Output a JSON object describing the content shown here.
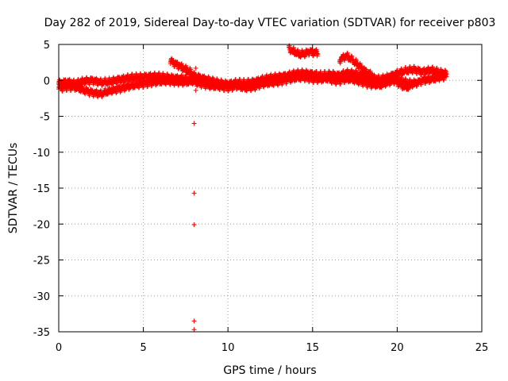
{
  "chart_data": {
    "type": "scatter",
    "title": "Day 282 of 2019, Sidereal Day-to-day VTEC variation (SDTVAR) for receiver p803",
    "xlabel": "GPS time / hours",
    "ylabel": "SDTVAR / TECUs",
    "xlim": [
      0,
      25
    ],
    "ylim": [
      -35,
      5
    ],
    "xticks": [
      0,
      5,
      10,
      15,
      20,
      25
    ],
    "yticks": [
      5,
      0,
      -5,
      -10,
      -15,
      -20,
      -25,
      -30,
      -35
    ],
    "grid": true,
    "marker": "+",
    "color": "#ff0000",
    "series": [
      {
        "name": "p803",
        "bands": [
          {
            "x": [
              0.0,
              0.5,
              1.0,
              1.5,
              2.0,
              2.5,
              3.0,
              3.5,
              4.0,
              4.5,
              5.0,
              5.5,
              6.0,
              6.5,
              7.0,
              7.5,
              8.0
            ],
            "y": [
              -0.5,
              -0.3,
              -0.6,
              -0.2,
              -0.1,
              -0.4,
              -0.3,
              0.0,
              0.2,
              0.3,
              0.4,
              0.5,
              0.4,
              0.3,
              0.2,
              0.1,
              0.0
            ]
          },
          {
            "x": [
              0.0,
              0.5,
              1.0,
              1.5,
              2.0,
              2.5,
              3.0,
              3.5,
              4.0,
              4.5,
              5.0,
              5.5,
              6.0,
              6.5,
              7.0,
              7.5,
              8.0
            ],
            "y": [
              -1.2,
              -1.0,
              -1.1,
              -1.5,
              -1.8,
              -2.0,
              -1.6,
              -1.3,
              -1.0,
              -0.8,
              -0.6,
              -0.4,
              -0.3,
              -0.2,
              -0.3,
              -0.4,
              -0.2
            ]
          },
          {
            "x": [
              6.6,
              6.9,
              7.2,
              7.5,
              7.8,
              8.0
            ],
            "y": [
              2.6,
              2.2,
              1.8,
              1.4,
              1.0,
              0.6
            ]
          },
          {
            "x": [
              8.0,
              8.5,
              9.0,
              9.5,
              10.0,
              10.5,
              11.0,
              11.5,
              12.0,
              12.5,
              13.0,
              13.5,
              14.0,
              14.5,
              15.0,
              15.5,
              16.0
            ],
            "y": [
              0.5,
              0.2,
              -0.2,
              -0.5,
              -0.6,
              -0.4,
              -0.5,
              -0.3,
              0.0,
              0.2,
              0.4,
              0.6,
              0.8,
              0.9,
              0.8,
              0.6,
              0.7
            ]
          },
          {
            "x": [
              8.0,
              8.5,
              9.0,
              9.5,
              10.0,
              10.5,
              11.0,
              11.5,
              12.0,
              12.5,
              13.0,
              13.5,
              14.0,
              14.5,
              15.0,
              15.5,
              16.0
            ],
            "y": [
              -0.3,
              -0.6,
              -0.9,
              -1.0,
              -1.1,
              -0.9,
              -1.2,
              -1.0,
              -0.6,
              -0.5,
              -0.3,
              0.0,
              0.2,
              0.3,
              0.1,
              0.0,
              0.2
            ]
          },
          {
            "x": [
              13.6,
              13.9,
              14.2,
              14.5,
              14.8,
              15.1,
              15.3
            ],
            "y": [
              4.3,
              3.9,
              3.5,
              3.6,
              3.9,
              3.8,
              3.7
            ]
          },
          {
            "x": [
              16.0,
              16.5,
              17.0,
              17.5,
              18.0,
              18.5,
              19.0,
              19.5,
              20.0,
              20.5,
              21.0,
              21.5,
              22.0,
              22.5,
              22.9
            ],
            "y": [
              0.8,
              0.6,
              0.9,
              0.8,
              0.5,
              0.2,
              0.0,
              0.4,
              0.9,
              1.2,
              1.4,
              1.1,
              1.3,
              1.0,
              0.9
            ]
          },
          {
            "x": [
              16.0,
              16.5,
              17.0,
              17.5,
              18.0,
              18.5,
              19.0,
              19.5,
              20.0,
              20.5,
              21.0,
              21.5,
              22.0,
              22.5,
              22.9
            ],
            "y": [
              0.0,
              -0.2,
              0.1,
              -0.1,
              -0.4,
              -0.7,
              -0.8,
              -0.3,
              0.0,
              -0.4,
              -0.6,
              -0.1,
              0.0,
              0.3,
              0.5
            ]
          },
          {
            "x": [
              16.6,
              17.0,
              17.4,
              17.8,
              18.2,
              18.6
            ],
            "y": [
              2.8,
              3.3,
              2.6,
              1.8,
              1.0,
              0.5
            ]
          },
          {
            "x": [
              20.0,
              20.3,
              20.6,
              20.9,
              21.2
            ],
            "y": [
              -0.4,
              -0.9,
              -1.1,
              -0.6,
              -0.2
            ]
          }
        ],
        "outliers": [
          {
            "x": 8.0,
            "y": -6.0
          },
          {
            "x": 8.0,
            "y": -15.7
          },
          {
            "x": 8.0,
            "y": -20.1
          },
          {
            "x": 8.0,
            "y": -33.5
          },
          {
            "x": 8.0,
            "y": -34.7
          },
          {
            "x": 8.1,
            "y": 1.7
          },
          {
            "x": 8.1,
            "y": -1.4
          }
        ]
      }
    ]
  }
}
